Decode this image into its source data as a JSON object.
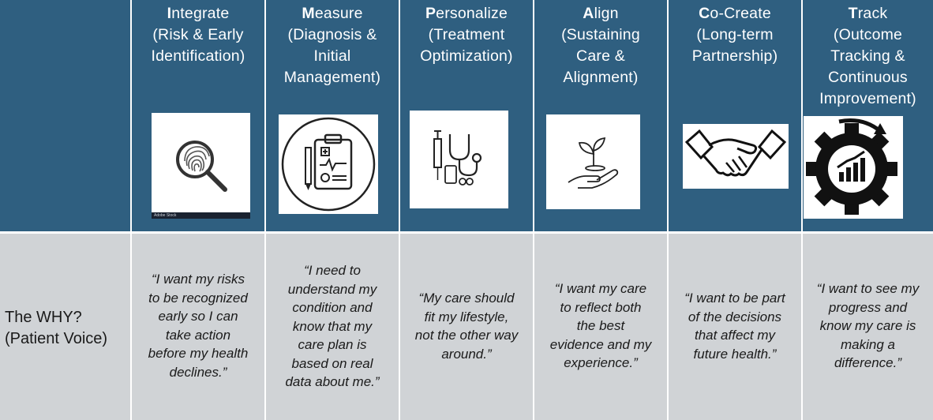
{
  "header_row": [
    {
      "initial": "I",
      "rest": "ntegrate",
      "sub": [
        "(Risk & Early",
        "Identification)"
      ],
      "icon": "fingerprint-magnifier-icon"
    },
    {
      "initial": "M",
      "rest": "easure",
      "sub": [
        "(Diagnosis &",
        "Initial",
        "Management)"
      ],
      "icon": "clipboard-chart-icon"
    },
    {
      "initial": "P",
      "rest": "ersonalize",
      "sub": [
        "(Treatment",
        "Optimization)"
      ],
      "icon": "medical-tools-icon"
    },
    {
      "initial": "A",
      "rest": "lign",
      "sub": [
        "(Sustaining",
        "Care &",
        "Alignment)"
      ],
      "icon": "hand-sprout-icon"
    },
    {
      "initial": "C",
      "rest": "o-Create",
      "sub": [
        "(Long-term",
        "Partnership)"
      ],
      "icon": "handshake-icon"
    },
    {
      "initial": "T",
      "rest": "rack",
      "sub": [
        "(Outcome",
        "Tracking &",
        "Continuous",
        "Improvement)"
      ],
      "icon": "gear-growth-icon"
    }
  ],
  "row_label": [
    "The WHY?",
    "(Patient Voice)"
  ],
  "quotes": [
    [
      "“I want my risks",
      "to be recognized",
      "early so I can",
      "take action",
      "before my health",
      "declines.”"
    ],
    [
      "“I need to",
      "understand my",
      "condition and",
      "know that my",
      "care plan is",
      "based on real",
      "data about me.”"
    ],
    [
      "“My care should",
      "fit my lifestyle,",
      "not the other way",
      "around.”"
    ],
    [
      "“I want my care",
      "to reflect both",
      "the best",
      "evidence and my",
      "experience.”"
    ],
    [
      "“I want to be part",
      "of the decisions",
      "that affect my",
      "future health.”"
    ],
    [
      "“I want to see my",
      "progress and",
      "know my care is",
      "making a",
      "difference.”"
    ]
  ],
  "stock_watermark": "Adobe Stock"
}
